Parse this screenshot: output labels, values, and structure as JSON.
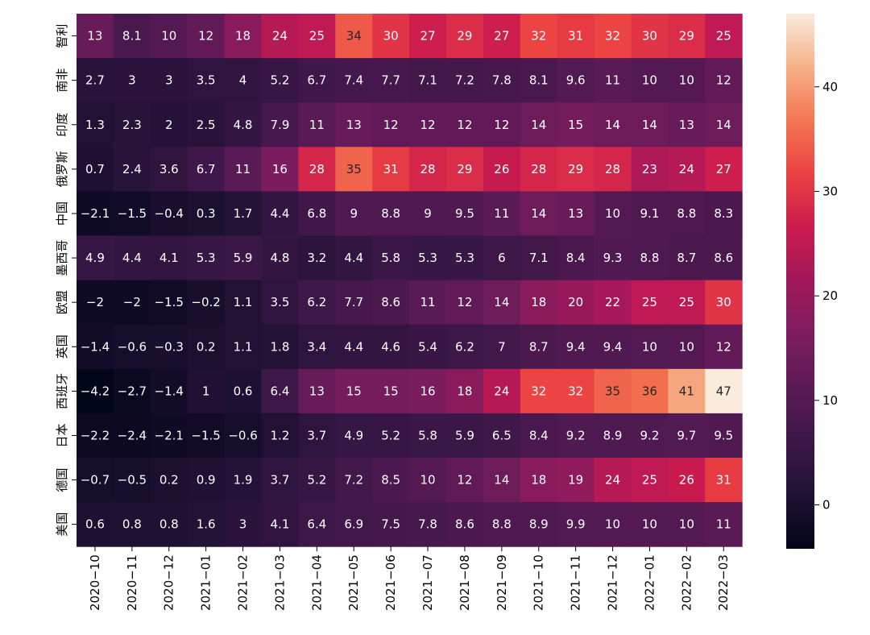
{
  "chart_data": {
    "type": "heatmap",
    "rows": [
      "智利",
      "南非",
      "印度",
      "俄罗斯",
      "中国",
      "墨西哥",
      "欧盟",
      "英国",
      "西班牙",
      "日本",
      "德国",
      "美国"
    ],
    "columns": [
      "2020-10",
      "2020-11",
      "2020-12",
      "2021-01",
      "2021-02",
      "2021-03",
      "2021-04",
      "2021-05",
      "2021-06",
      "2021-07",
      "2021-08",
      "2021-09",
      "2021-10",
      "2021-11",
      "2021-12",
      "2022-01",
      "2022-02",
      "2022-03"
    ],
    "values": [
      [
        13,
        8.1,
        10,
        12,
        18,
        24,
        25,
        34,
        30,
        27,
        29,
        27,
        32,
        31,
        32,
        30,
        29,
        25
      ],
      [
        2.7,
        3,
        3,
        3.5,
        4,
        5.2,
        6.7,
        7.4,
        7.7,
        7.1,
        7.2,
        7.8,
        8.1,
        9.6,
        11,
        10,
        10,
        12
      ],
      [
        1.3,
        2.3,
        2,
        2.5,
        4.8,
        7.9,
        11,
        13,
        12,
        12,
        12,
        12,
        14,
        15,
        14,
        14,
        13,
        14
      ],
      [
        0.7,
        2.4,
        3.6,
        6.7,
        11,
        16,
        28,
        35,
        31,
        28,
        29,
        26,
        28,
        29,
        28,
        23,
        24,
        27
      ],
      [
        -2.1,
        -1.5,
        -0.4,
        0.3,
        1.7,
        4.4,
        6.8,
        9,
        8.8,
        9,
        9.5,
        11,
        14,
        13,
        10,
        9.1,
        8.8,
        8.3
      ],
      [
        4.9,
        4.4,
        4.1,
        5.3,
        5.9,
        4.8,
        3.2,
        4.4,
        5.8,
        5.3,
        5.3,
        6,
        7.1,
        8.4,
        9.3,
        8.8,
        8.7,
        8.6
      ],
      [
        -2,
        -2,
        -1.5,
        -0.2,
        1.1,
        3.5,
        6.2,
        7.7,
        8.6,
        11,
        12,
        14,
        18,
        20,
        22,
        25,
        25,
        30
      ],
      [
        -1.4,
        -0.6,
        -0.3,
        0.2,
        1.1,
        1.8,
        3.4,
        4.4,
        4.6,
        5.4,
        6.2,
        7,
        8.7,
        9.4,
        9.4,
        10,
        10,
        12
      ],
      [
        -4.2,
        -2.7,
        -1.4,
        1,
        0.6,
        6.4,
        13,
        15,
        15,
        16,
        18,
        24,
        32,
        32,
        35,
        36,
        41,
        47
      ],
      [
        -2.2,
        -2.4,
        -2.1,
        -1.5,
        -0.6,
        1.2,
        3.7,
        4.9,
        5.2,
        5.8,
        5.9,
        6.5,
        8.4,
        9.2,
        8.9,
        9.2,
        9.7,
        9.5
      ],
      [
        -0.7,
        -0.5,
        0.2,
        0.9,
        1.9,
        3.7,
        5.2,
        7.2,
        8.5,
        10,
        12,
        14,
        18,
        19,
        24,
        25,
        26,
        31
      ],
      [
        0.6,
        0.8,
        0.8,
        1.6,
        3,
        4.1,
        6.4,
        6.9,
        7.5,
        7.8,
        8.6,
        8.8,
        8.9,
        9.9,
        10,
        10,
        10,
        11
      ]
    ],
    "vmin": -4.2,
    "vmax": 47,
    "colormap": "rocket",
    "colorbar_ticks": [
      "0",
      "10",
      "20",
      "30",
      "40"
    ],
    "annotations": true,
    "grid": false,
    "title": "",
    "xlabel": "",
    "ylabel": ""
  }
}
